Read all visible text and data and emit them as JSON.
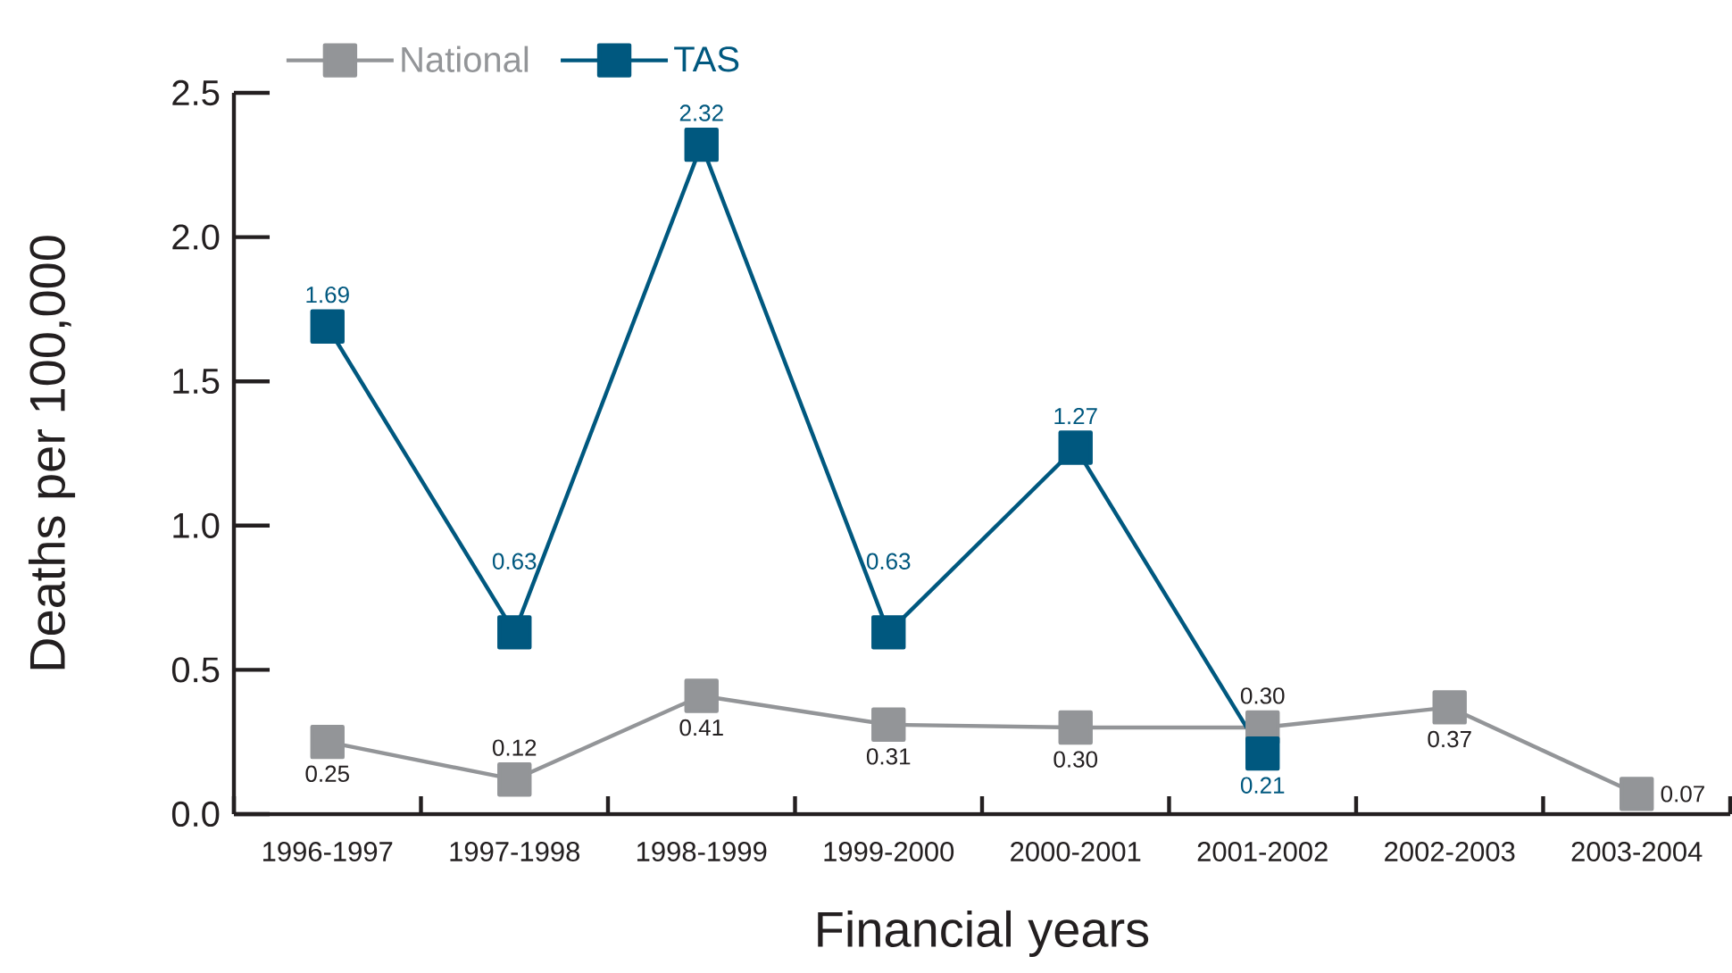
{
  "chart_data": {
    "type": "line",
    "xlabel": "Financial years",
    "ylabel": "Deaths per 100,000",
    "categories": [
      "1996-1997",
      "1997-1998",
      "1998-1999",
      "1999-2000",
      "2000-2001",
      "2001-2002",
      "2002-2003",
      "2003-2004"
    ],
    "series": [
      {
        "name": "National",
        "color": "#939598",
        "values": [
          0.25,
          0.12,
          0.41,
          0.31,
          0.3,
          0.3,
          0.37,
          0.07
        ],
        "value_labels": [
          "0.25",
          "0.12",
          "0.41",
          "0.31",
          "0.30",
          "0.30",
          "0.37",
          "0.07"
        ]
      },
      {
        "name": "TAS",
        "color": "#00587f",
        "values": [
          1.69,
          0.63,
          2.32,
          0.63,
          1.27,
          0.21,
          null,
          null
        ],
        "value_labels": [
          "1.69",
          "0.63",
          "2.32",
          "0.63",
          "1.27",
          "0.21",
          null,
          null
        ]
      }
    ],
    "ylim": [
      0,
      2.5
    ],
    "yticks": [
      {
        "value": 0,
        "label": "0.0"
      },
      0.5,
      {
        "value": 1,
        "label": "1.0"
      },
      1.5,
      {
        "value": 2,
        "label": "2.0"
      },
      2.5
    ],
    "legend": "top left",
    "marker": "square",
    "line_style": "solid"
  }
}
